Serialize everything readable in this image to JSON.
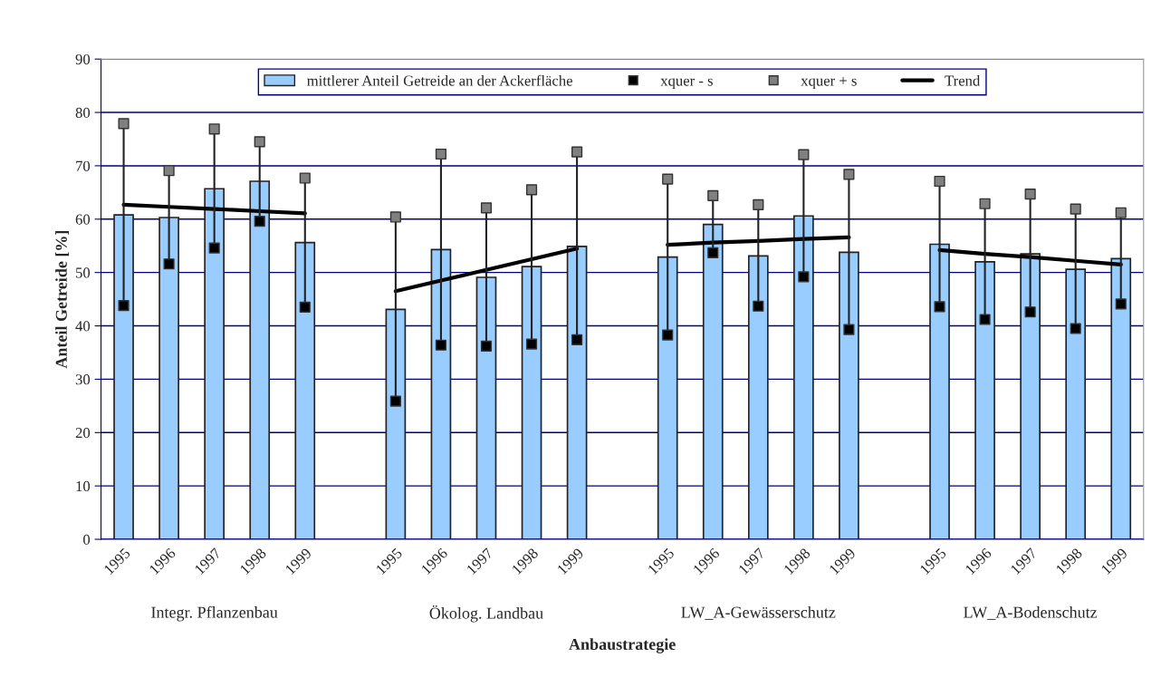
{
  "chart_data": {
    "type": "bar",
    "ylabel": "Anteil Getreide [%]",
    "xlabel": "Anbaustrategie",
    "categories": [
      "1995",
      "1996",
      "1997",
      "1998",
      "1999",
      null,
      "1995",
      "1996",
      "1997",
      "1998",
      "1999",
      null,
      "1995",
      "1996",
      "1997",
      "1998",
      "1999",
      null,
      "1995",
      "1996",
      "1997",
      "1998",
      "1999"
    ],
    "annotations": [
      "Integr. Pflanzenbau",
      "Ökolog. Landbau",
      "LW_A-Gewässerschutz",
      "LW_A-Bodenschutz"
    ],
    "ylim": [
      0,
      90
    ],
    "yticks": [
      0,
      10,
      20,
      30,
      40,
      50,
      60,
      70,
      80,
      90
    ],
    "grid": "y",
    "legend": "top",
    "series": [
      {
        "name": "mittlerer Anteil Getreide an der Ackerfläche",
        "type": "bar",
        "color": "#99ccff",
        "values": [
          60.8,
          60.3,
          65.7,
          67.1,
          55.6,
          null,
          43.1,
          54.3,
          49.1,
          51.1,
          54.9,
          null,
          52.9,
          59.0,
          53.1,
          60.6,
          53.8,
          null,
          55.3,
          52.0,
          53.5,
          50.6,
          52.6
        ]
      },
      {
        "name": "xquer - s",
        "type": "scatter",
        "color": "#000000",
        "marker": "square",
        "values": [
          43.8,
          51.6,
          54.6,
          59.6,
          43.5,
          null,
          25.9,
          36.4,
          36.2,
          36.6,
          37.4,
          null,
          38.3,
          53.7,
          43.7,
          49.2,
          39.3,
          null,
          43.6,
          41.2,
          42.6,
          39.5,
          44.1
        ]
      },
      {
        "name": "xquer + s",
        "type": "scatter",
        "color": "#808080",
        "marker": "square",
        "values": [
          77.9,
          69.1,
          76.9,
          74.5,
          67.7,
          null,
          60.4,
          72.2,
          62.1,
          65.5,
          72.6,
          null,
          67.5,
          64.4,
          62.7,
          72.1,
          68.4,
          null,
          67.1,
          62.9,
          64.7,
          61.9,
          61.2
        ]
      },
      {
        "name": "Trend",
        "type": "line",
        "color": "#000000",
        "line_style": "solid",
        "values": [
          62.7,
          62.3,
          61.9,
          61.5,
          61.1,
          null,
          46.5,
          48.5,
          50.5,
          52.5,
          54.5,
          null,
          55.2,
          55.6,
          55.9,
          56.3,
          56.6,
          null,
          54.2,
          53.5,
          52.9,
          52.2,
          51.5
        ]
      }
    ]
  }
}
